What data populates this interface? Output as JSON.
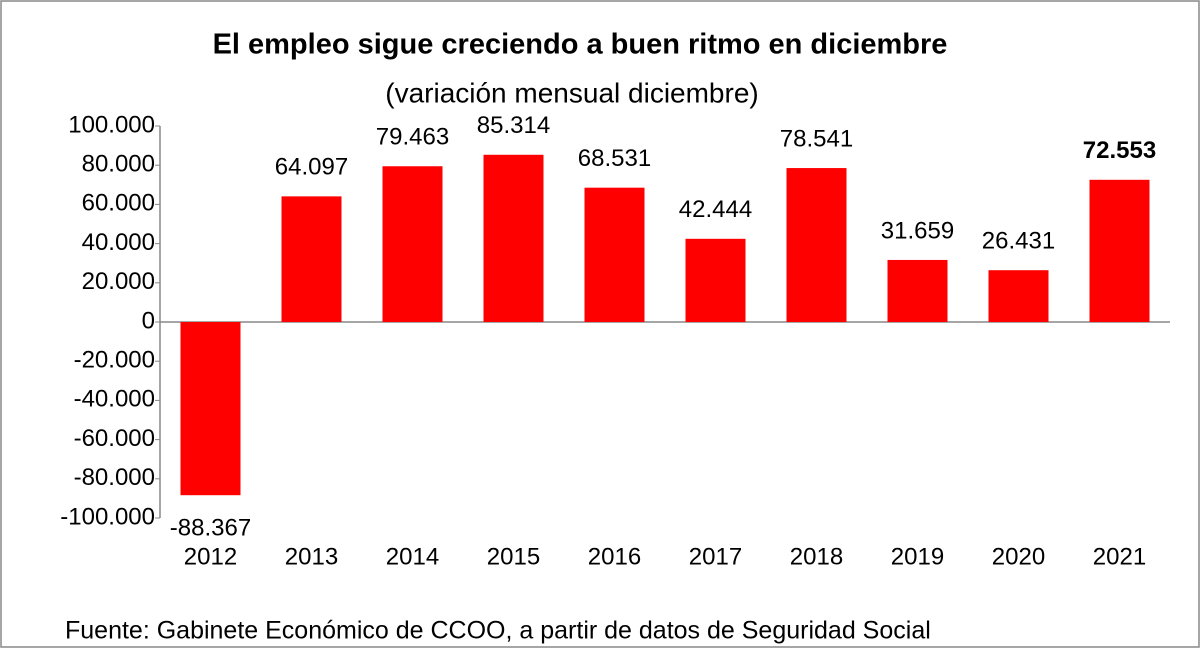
{
  "chart_data": {
    "type": "bar",
    "title": "El empleo sigue creciendo a buen ritmo en diciembre",
    "subtitle": "(variación mensual diciembre)",
    "source": "Fuente: Gabinete Económico de CCOO, a partir de datos de Seguridad Social",
    "categories": [
      "2012",
      "2013",
      "2014",
      "2015",
      "2016",
      "2017",
      "2018",
      "2019",
      "2020",
      "2021"
    ],
    "values": [
      -88367,
      64097,
      79463,
      85314,
      68531,
      42444,
      78541,
      31659,
      26431,
      72553
    ],
    "value_labels": [
      "-88.367",
      "64.097",
      "79.463",
      "85.314",
      "68.531",
      "42.444",
      "78.541",
      "31.659",
      "26.431",
      "72.553"
    ],
    "bold_category": "2021",
    "color": "#ff0000",
    "ylim": [
      -100000,
      100000
    ],
    "yticks": [
      {
        "value": -100000,
        "label": "-100.000"
      },
      {
        "value": -80000,
        "label": "-80.000"
      },
      {
        "value": -60000,
        "label": "-60.000"
      },
      {
        "value": -40000,
        "label": "-40.000"
      },
      {
        "value": -20000,
        "label": "-20.000"
      },
      0,
      {
        "value": 20000,
        "label": "20.000"
      },
      {
        "value": 40000,
        "label": "40.000"
      },
      {
        "value": 60000,
        "label": "60.000"
      },
      {
        "value": 80000,
        "label": "80.000"
      },
      {
        "value": 100000,
        "label": "100.000"
      }
    ],
    "grid": false
  }
}
